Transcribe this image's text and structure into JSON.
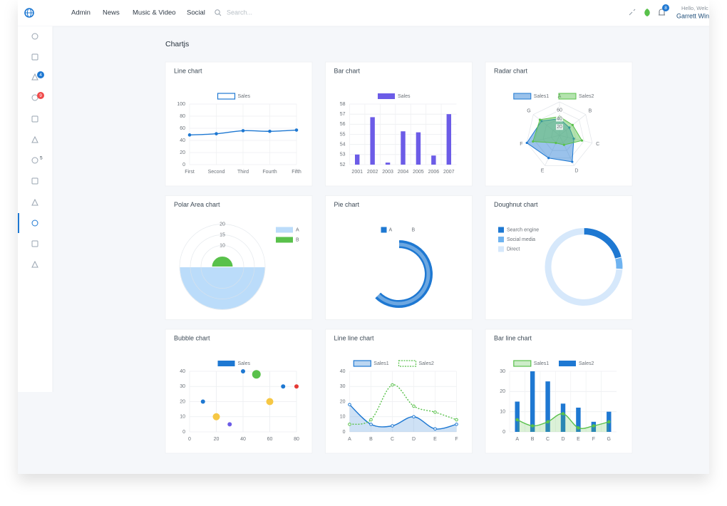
{
  "nav": {
    "items": [
      "Admin",
      "News",
      "Music & Video",
      "Social"
    ],
    "search_placeholder": "Search...",
    "notifications": 8,
    "greeting": "Hello, Welc",
    "user": "Garrett Win"
  },
  "sidebar": {
    "badges": [
      4,
      9,
      5
    ]
  },
  "page_title": "Chartjs",
  "chart_data": [
    {
      "type": "line",
      "title": "Line chart",
      "categories": [
        "First",
        "Second",
        "Third",
        "Fourth",
        "Fifth"
      ],
      "series": [
        {
          "name": "Sales",
          "color": "#1e78d2",
          "values": [
            49,
            51,
            56,
            55,
            57
          ]
        }
      ],
      "ylim": [
        0,
        100
      ],
      "yticks": [
        0,
        20,
        40,
        60,
        80,
        100
      ],
      "grid": true,
      "smooth": true
    },
    {
      "type": "bar",
      "title": "Bar chart",
      "categories": [
        "2001",
        "2002",
        "2003",
        "2004",
        "2005",
        "2006",
        "2007"
      ],
      "series": [
        {
          "name": "Sales",
          "color": "#6c5ce7",
          "values": [
            53.0,
            56.7,
            52.2,
            55.3,
            55.2,
            52.9,
            57.0
          ]
        }
      ],
      "ylim": [
        52,
        58
      ],
      "yticks": [
        52,
        53,
        54,
        55,
        56,
        57,
        58
      ],
      "grid": true
    },
    {
      "type": "radar",
      "title": "Radar chart",
      "categories": [
        "A",
        "B",
        "C",
        "D",
        "E",
        "F",
        "G"
      ],
      "series": [
        {
          "name": "Sales1",
          "color": "#1e78d2",
          "values": [
            40,
            30,
            35,
            70,
            60,
            80,
            55
          ]
        },
        {
          "name": "Sales2",
          "color": "#59c14b",
          "values": [
            45,
            40,
            55,
            25,
            20,
            65,
            60
          ]
        }
      ],
      "rlim": [
        0,
        80
      ],
      "rticks": [
        20,
        40,
        60
      ]
    },
    {
      "type": "polarArea",
      "title": "Polar Area chart",
      "categories": [
        "A",
        "B"
      ],
      "values": [
        20,
        5
      ],
      "colors": [
        "#bbdcfa",
        "#59c14b"
      ],
      "rlim": [
        0,
        20
      ],
      "rticks": [
        10,
        15,
        20
      ]
    },
    {
      "type": "pie",
      "title": "Pie chart",
      "categories": [
        "A",
        "B"
      ],
      "values": [
        5,
        3
      ],
      "colors": [
        "#1e78d2",
        "#ffffff"
      ]
    },
    {
      "type": "doughnut",
      "title": "Doughnut chart",
      "categories": [
        "Search engine",
        "Social media",
        "Direct"
      ],
      "values": [
        21,
        5,
        74
      ],
      "colors": [
        "#1e78d2",
        "#6fb3f0",
        "#d6e8fb"
      ]
    },
    {
      "type": "bubble",
      "title": "Bubble chart",
      "series": [
        {
          "name": "Sales",
          "color": "#1e78d2",
          "x": [
            10,
            20,
            30,
            40,
            50,
            60,
            70,
            80
          ],
          "values": [
            20,
            10,
            5,
            40,
            38,
            20,
            30,
            30
          ],
          "sizes": [
            3,
            5,
            3,
            3,
            6,
            5,
            3,
            3
          ],
          "point_colors": [
            "#1e78d2",
            "#f6c744",
            "#6c5ce7",
            "#1e78d2",
            "#59c14b",
            "#f6c744",
            "#1e78d2",
            "#e53935"
          ]
        }
      ],
      "xlim": [
        0,
        80
      ],
      "xticks": [
        0,
        20,
        40,
        60,
        80
      ],
      "ylim": [
        0,
        40
      ],
      "yticks": [
        0,
        10,
        20,
        30,
        40
      ],
      "grid": true
    },
    {
      "type": "line",
      "title": "Line line chart",
      "categories": [
        "A",
        "B",
        "C",
        "D",
        "E",
        "F"
      ],
      "series": [
        {
          "name": "Sales1",
          "color": "#1e78d2",
          "fill": true,
          "values": [
            18,
            5,
            4,
            10,
            2,
            5
          ]
        },
        {
          "name": "Sales2",
          "color": "#59c14b",
          "dashed": true,
          "values": [
            5,
            8,
            31,
            17,
            13,
            8
          ]
        }
      ],
      "ylim": [
        0,
        40
      ],
      "yticks": [
        0,
        10,
        20,
        30,
        40
      ],
      "grid": true,
      "smooth": true,
      "point_fill": "#ffffff"
    },
    {
      "type": "bar",
      "title": "Bar line chart",
      "categories": [
        "A",
        "B",
        "C",
        "D",
        "E",
        "F",
        "G"
      ],
      "series": [
        {
          "name": "Sales1",
          "type": "line",
          "color": "#59c14b",
          "fill": true,
          "values": [
            6,
            3,
            5,
            9,
            2,
            3,
            5
          ]
        },
        {
          "name": "Sales2",
          "color": "#1e78d2",
          "values": [
            15,
            30,
            25,
            14,
            12,
            5,
            10
          ]
        }
      ],
      "ylim": [
        0,
        30
      ],
      "yticks": [
        0,
        10,
        20,
        30
      ],
      "grid": true,
      "smooth": true
    }
  ]
}
